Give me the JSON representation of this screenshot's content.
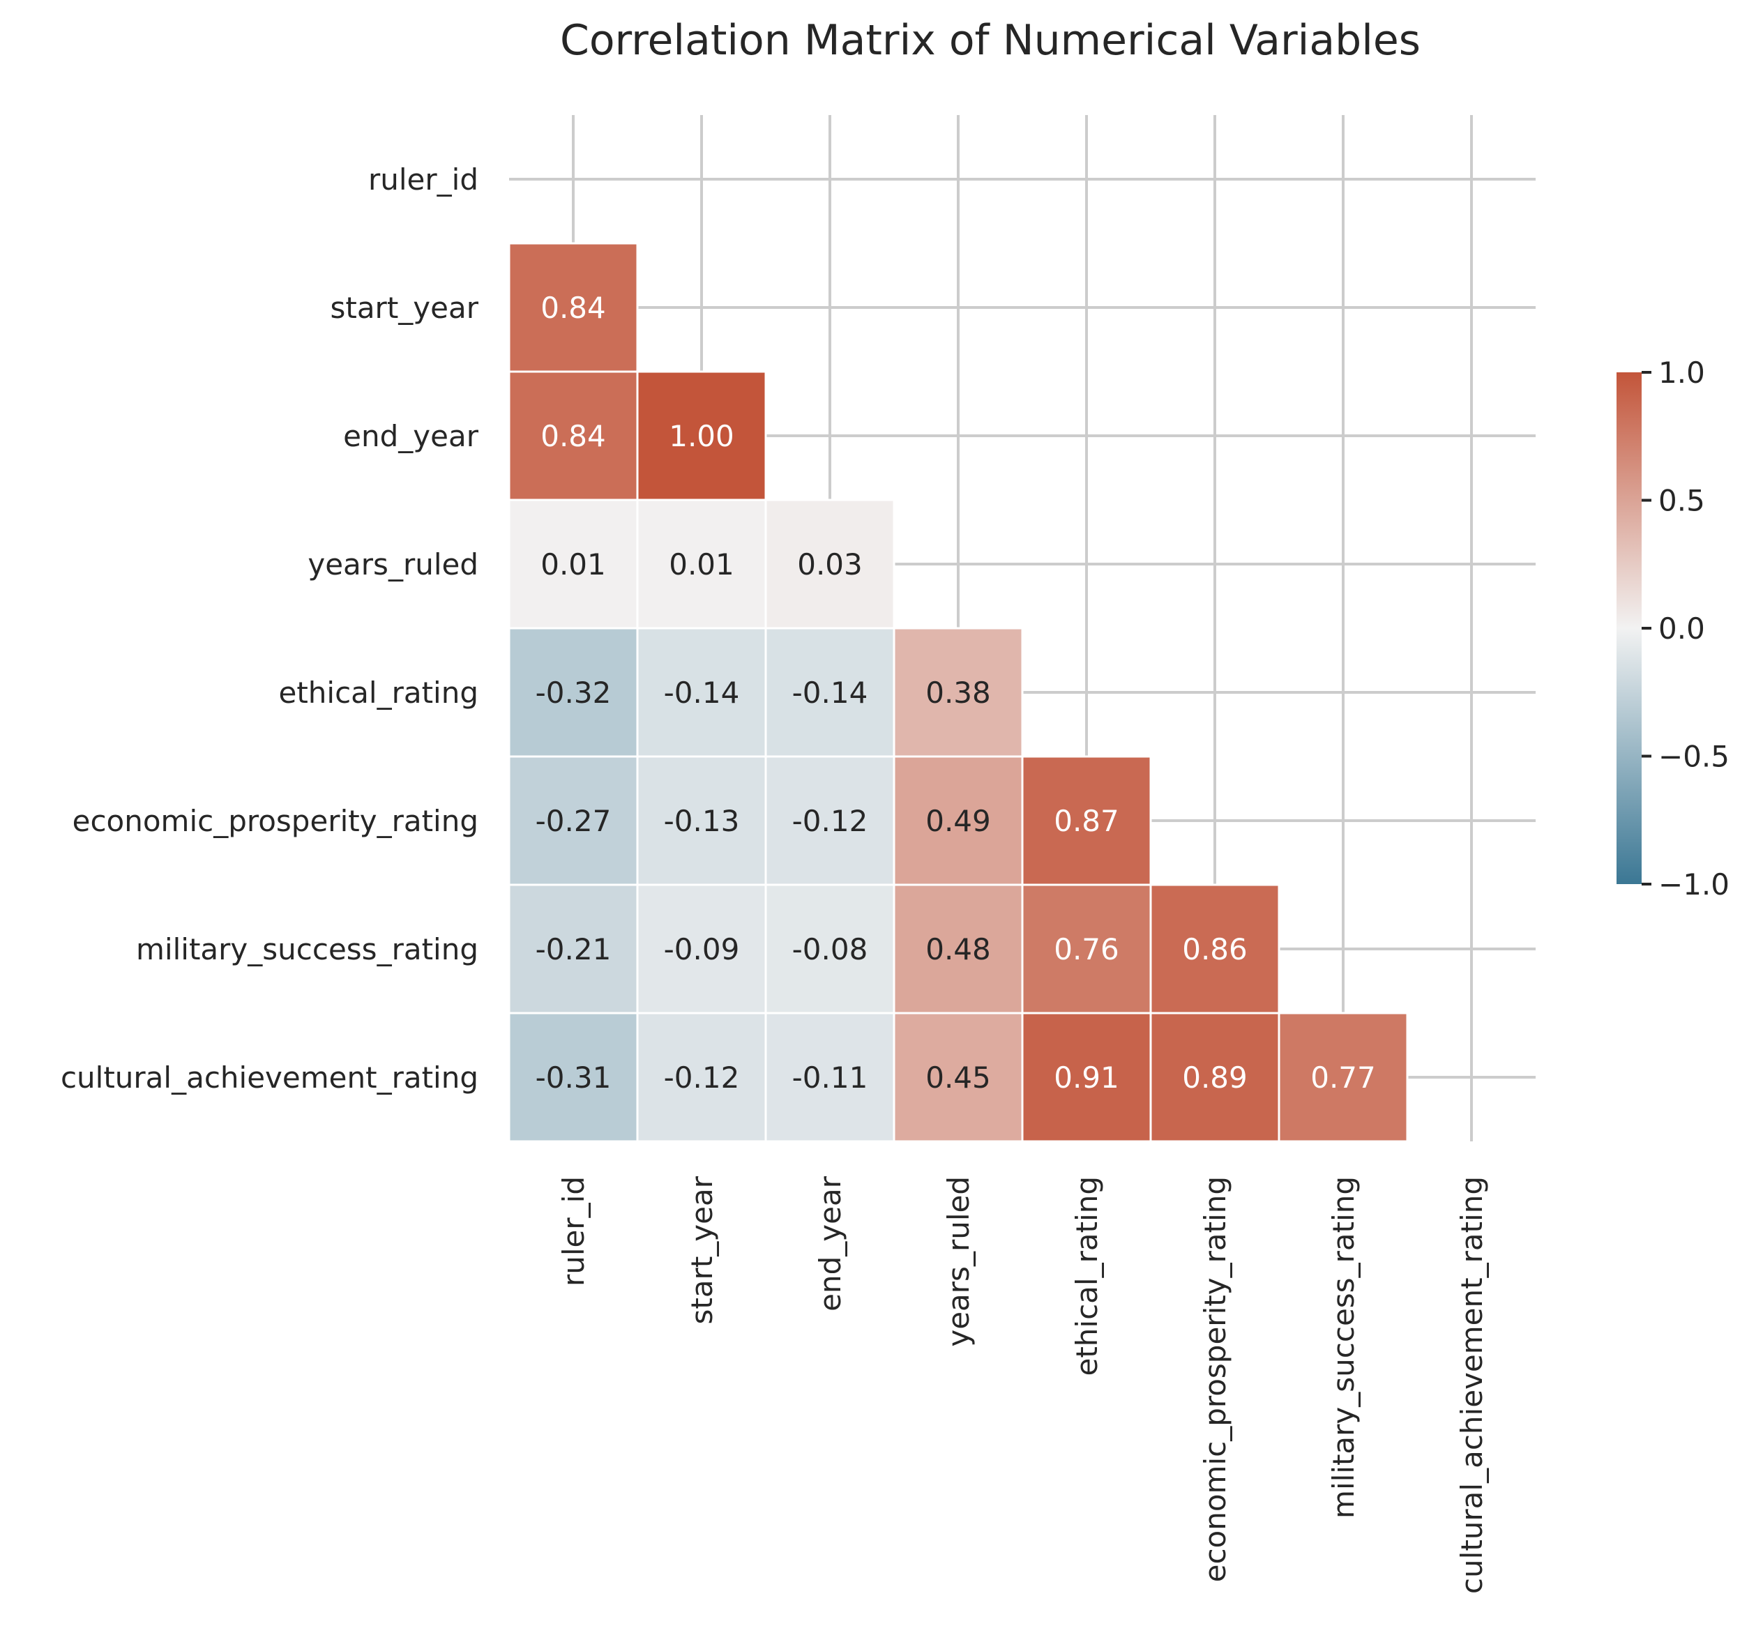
{
  "chart_data": {
    "type": "heatmap",
    "title": "Correlation Matrix of Numerical Variables",
    "xlabel": "",
    "ylabel": "",
    "variables": [
      "ruler_id",
      "start_year",
      "end_year",
      "years_ruled",
      "ethical_rating",
      "economic_prosperity_rating",
      "military_success_rating",
      "cultural_achievement_rating"
    ],
    "mask": "upper triangle including diagonal hidden",
    "values": [
      [
        null,
        null,
        null,
        null,
        null,
        null,
        null,
        null
      ],
      [
        0.84,
        null,
        null,
        null,
        null,
        null,
        null,
        null
      ],
      [
        0.84,
        1.0,
        null,
        null,
        null,
        null,
        null,
        null
      ],
      [
        0.01,
        0.01,
        0.03,
        null,
        null,
        null,
        null,
        null
      ],
      [
        -0.32,
        -0.14,
        -0.14,
        0.38,
        null,
        null,
        null,
        null
      ],
      [
        -0.27,
        -0.13,
        -0.12,
        0.49,
        0.87,
        null,
        null,
        null
      ],
      [
        -0.21,
        -0.09,
        -0.08,
        0.48,
        0.76,
        0.86,
        null,
        null
      ],
      [
        -0.31,
        -0.12,
        -0.11,
        0.45,
        0.91,
        0.89,
        0.77,
        null
      ]
    ],
    "labels": [
      [
        null,
        null,
        null,
        null,
        null,
        null,
        null,
        null
      ],
      [
        "0.84",
        null,
        null,
        null,
        null,
        null,
        null,
        null
      ],
      [
        "0.84",
        "1.00",
        null,
        null,
        null,
        null,
        null,
        null
      ],
      [
        "0.01",
        "0.01",
        "0.03",
        null,
        null,
        null,
        null,
        null
      ],
      [
        "-0.32",
        "-0.14",
        "-0.14",
        "0.38",
        null,
        null,
        null,
        null
      ],
      [
        "-0.27",
        "-0.13",
        "-0.12",
        "0.49",
        "0.87",
        null,
        null,
        null
      ],
      [
        "-0.21",
        "-0.09",
        "-0.08",
        "0.48",
        "0.76",
        "0.86",
        null,
        null
      ],
      [
        "-0.31",
        "-0.12",
        "-0.11",
        "0.45",
        "0.91",
        "0.89",
        "0.77",
        null
      ]
    ],
    "colorbar": {
      "range": [
        -1.0,
        1.0
      ],
      "ticks": [
        1.0,
        0.5,
        0.0,
        -0.5,
        -1.0
      ],
      "tick_labels": [
        "1.0",
        "0.5",
        "0.0",
        "−0.5",
        "−1.0"
      ],
      "colors": {
        "negative_end": "#3b7794",
        "center": "#f2f2f2",
        "positive_end": "#c3553a"
      }
    },
    "grid": true,
    "legend": "colorbar right"
  }
}
